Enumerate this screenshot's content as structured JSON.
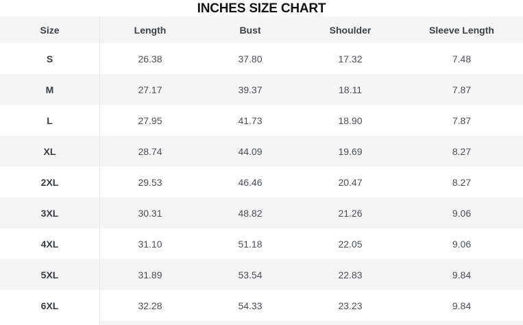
{
  "title": "INCHES SIZE CHART",
  "table": {
    "columns": [
      "Size",
      "Length",
      "Bust",
      "Shoulder",
      "Sleeve Length"
    ],
    "rows": [
      {
        "size": "S",
        "values": [
          "26.38",
          "37.80",
          "17.32",
          "7.48"
        ]
      },
      {
        "size": "M",
        "values": [
          "27.17",
          "39.37",
          "18.11",
          "7.87"
        ]
      },
      {
        "size": "L",
        "values": [
          "27.95",
          "41.73",
          "18.90",
          "7.87"
        ]
      },
      {
        "size": "XL",
        "values": [
          "28.74",
          "44.09",
          "19.69",
          "8.27"
        ]
      },
      {
        "size": "2XL",
        "values": [
          "29.53",
          "46.46",
          "20.47",
          "8.27"
        ]
      },
      {
        "size": "3XL",
        "values": [
          "30.31",
          "48.82",
          "21.26",
          "9.06"
        ]
      },
      {
        "size": "4XL",
        "values": [
          "31.10",
          "51.18",
          "22.05",
          "9.06"
        ]
      },
      {
        "size": "5XL",
        "values": [
          "31.89",
          "53.54",
          "22.83",
          "9.84"
        ]
      },
      {
        "size": "6XL",
        "values": [
          "32.28",
          "54.33",
          "23.23",
          "9.84"
        ]
      }
    ]
  },
  "colors": {
    "band": "#f5f5f6",
    "divider": "#e7e7e9",
    "title_text": "#131313",
    "header_text": "#3d4147",
    "size_text": "#383c42",
    "value_text": "#4b4f55",
    "background": "#ffffff"
  },
  "chart_data": {
    "type": "table",
    "title": "INCHES SIZE CHART",
    "units": "inches",
    "columns": [
      "Size",
      "Length",
      "Bust",
      "Shoulder",
      "Sleeve Length"
    ],
    "rows": [
      [
        "S",
        26.38,
        37.8,
        17.32,
        7.48
      ],
      [
        "M",
        27.17,
        39.37,
        18.11,
        7.87
      ],
      [
        "L",
        27.95,
        41.73,
        18.9,
        7.87
      ],
      [
        "XL",
        28.74,
        44.09,
        19.69,
        8.27
      ],
      [
        "2XL",
        29.53,
        46.46,
        20.47,
        8.27
      ],
      [
        "3XL",
        30.31,
        48.82,
        21.26,
        9.06
      ],
      [
        "4XL",
        31.1,
        51.18,
        22.05,
        9.06
      ],
      [
        "5XL",
        31.89,
        53.54,
        22.83,
        9.84
      ],
      [
        "6XL",
        32.28,
        54.33,
        23.23,
        9.84
      ]
    ],
    "layout": {
      "header_band": true,
      "alternating_rows": true,
      "divider_after_first_column": true
    }
  }
}
